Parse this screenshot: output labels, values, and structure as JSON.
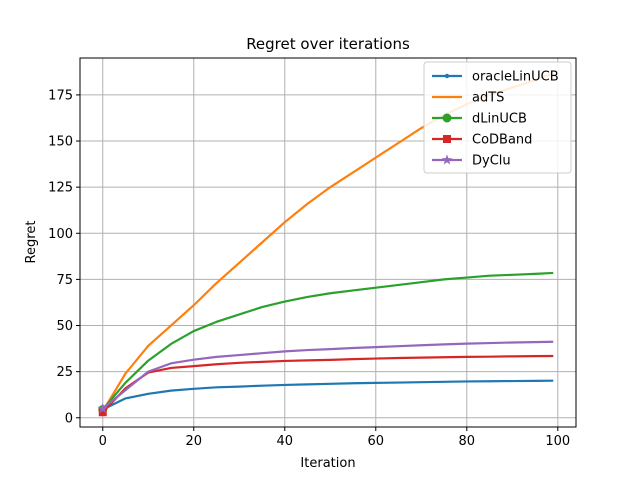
{
  "chart_data": {
    "type": "line",
    "title": "Regret over iterations",
    "xlabel": "Iteration",
    "ylabel": "Regret",
    "xlim": [
      -5,
      104
    ],
    "ylim": [
      -5,
      195
    ],
    "xticks": [
      0,
      20,
      40,
      60,
      80,
      100
    ],
    "yticks": [
      0,
      25,
      50,
      75,
      100,
      125,
      150,
      175
    ],
    "grid": true,
    "legend_position": "top-right",
    "x": [
      0,
      5,
      10,
      15,
      20,
      25,
      30,
      35,
      40,
      45,
      50,
      55,
      60,
      65,
      70,
      75,
      80,
      85,
      90,
      95,
      99
    ],
    "series": [
      {
        "name": "oracleLinUCB",
        "color": "#1f77b4",
        "marker": "point",
        "values": [
          4.5,
          10.5,
          13,
          14.7,
          15.7,
          16.5,
          16.9,
          17.4,
          17.8,
          18.1,
          18.4,
          18.7,
          18.9,
          19.1,
          19.3,
          19.5,
          19.7,
          19.8,
          19.9,
          20.0,
          20.1
        ]
      },
      {
        "name": "adTS",
        "color": "#ff7f0e",
        "marker": "none",
        "values": [
          3.5,
          24,
          39,
          50,
          61,
          73,
          84,
          95,
          106,
          116,
          125,
          133,
          141,
          149,
          157,
          164,
          170,
          175,
          179,
          183,
          187
        ]
      },
      {
        "name": "dLinUCB",
        "color": "#2ca02c",
        "marker": "circle",
        "values": [
          4.5,
          19,
          31,
          40,
          47,
          52,
          56,
          60,
          63,
          65.5,
          67.5,
          69,
          70.5,
          72,
          73.5,
          75,
          76,
          77,
          77.5,
          78,
          78.5
        ]
      },
      {
        "name": "CoDBand",
        "color": "#d62728",
        "marker": "square",
        "values": [
          3,
          16,
          24.5,
          27,
          28,
          29,
          29.8,
          30.3,
          30.8,
          31.1,
          31.4,
          31.8,
          32.1,
          32.4,
          32.6,
          32.8,
          33,
          33.1,
          33.3,
          33.4,
          33.5
        ]
      },
      {
        "name": "DyClu",
        "color": "#9467bd",
        "marker": "star",
        "values": [
          5,
          15,
          25,
          29.5,
          31.5,
          33,
          34,
          35,
          36,
          36.7,
          37.2,
          37.8,
          38.3,
          38.8,
          39.3,
          39.8,
          40.2,
          40.5,
          40.8,
          41,
          41.2
        ]
      }
    ]
  }
}
